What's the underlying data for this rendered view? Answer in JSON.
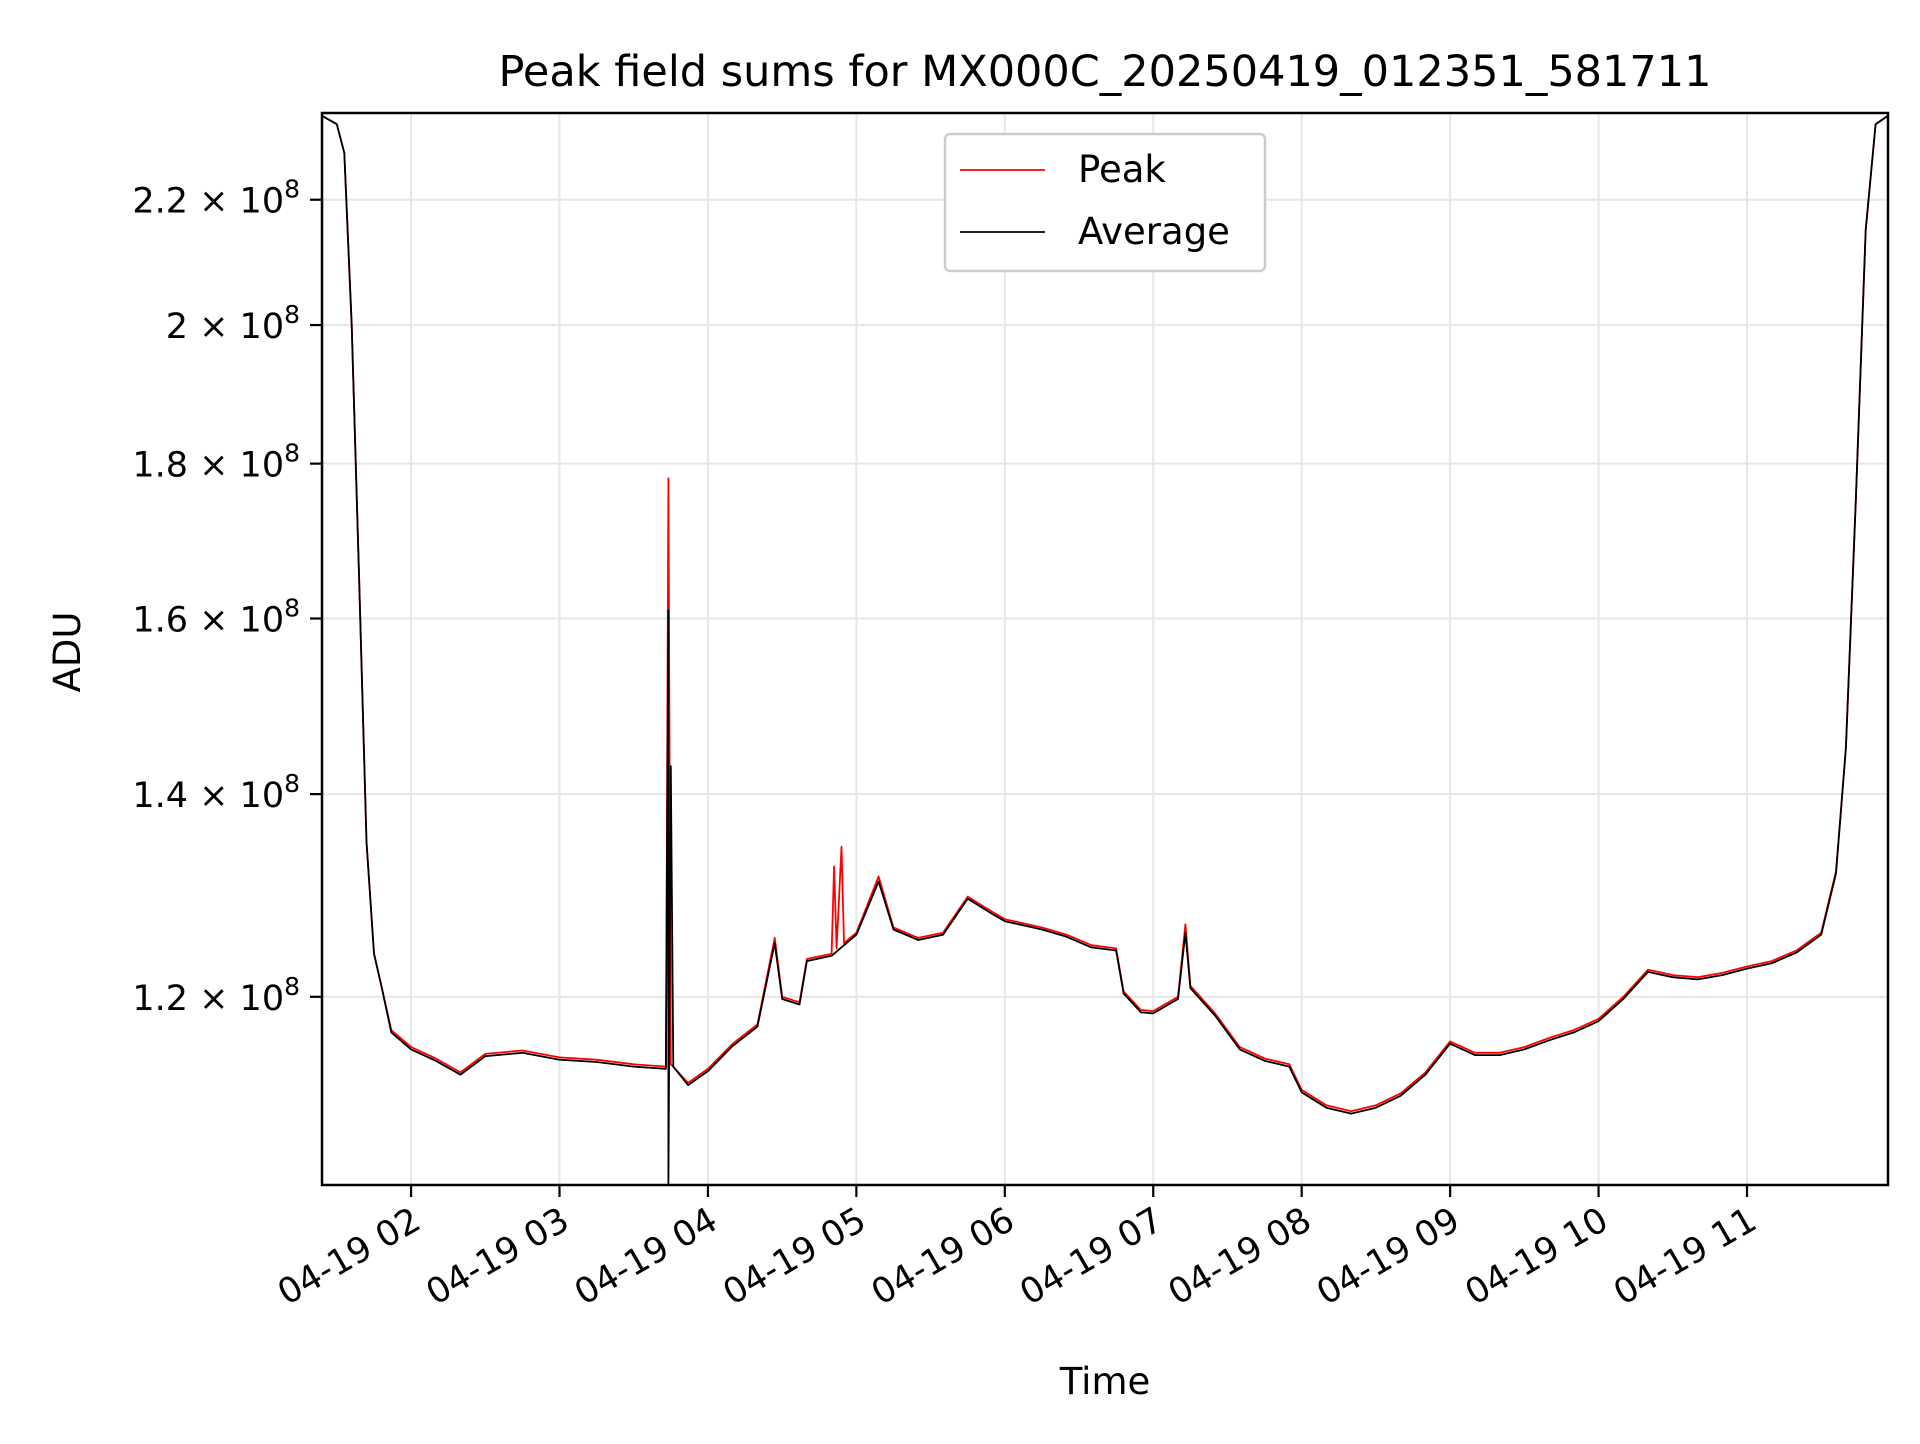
{
  "chart_data": {
    "type": "line",
    "title": "Peak field sums for MX000C_20250419_012351_581711",
    "xlabel": "Time",
    "ylabel": "ADU",
    "yscale": "log",
    "grid": true,
    "legend_position": "top-center",
    "xlim": [
      "2025-04-19 01:24",
      "2025-04-19 11:57"
    ],
    "ylim": [
      104000000,
      235000000
    ],
    "x_ticks": [
      {
        "value": "2025-04-19 02:00",
        "label": "04-19 02"
      },
      {
        "value": "2025-04-19 03:00",
        "label": "04-19 03"
      },
      {
        "value": "2025-04-19 04:00",
        "label": "04-19 04"
      },
      {
        "value": "2025-04-19 05:00",
        "label": "04-19 05"
      },
      {
        "value": "2025-04-19 06:00",
        "label": "04-19 06"
      },
      {
        "value": "2025-04-19 07:00",
        "label": "04-19 07"
      },
      {
        "value": "2025-04-19 08:00",
        "label": "04-19 08"
      },
      {
        "value": "2025-04-19 09:00",
        "label": "04-19 09"
      },
      {
        "value": "2025-04-19 10:00",
        "label": "04-19 10"
      },
      {
        "value": "2025-04-19 11:00",
        "label": "04-19 11"
      }
    ],
    "y_ticks": [
      {
        "value": 120000000,
        "mantissa": "1.2",
        "exp": "8"
      },
      {
        "value": 140000000,
        "mantissa": "1.4",
        "exp": "8"
      },
      {
        "value": 160000000,
        "mantissa": "1.6",
        "exp": "8"
      },
      {
        "value": 180000000,
        "mantissa": "1.8",
        "exp": "8"
      },
      {
        "value": 200000000,
        "mantissa": "2",
        "exp": "8"
      },
      {
        "value": 220000000,
        "mantissa": "2.2",
        "exp": "8"
      }
    ],
    "series": [
      {
        "name": "Peak",
        "color": "#ff0000",
        "points": [
          [
            "2025-04-19 01:24",
            234500000
          ],
          [
            "2025-04-19 01:30",
            233000000
          ],
          [
            "2025-04-19 01:33",
            228000000
          ],
          [
            "2025-04-19 01:36",
            200000000
          ],
          [
            "2025-04-19 01:39",
            165000000
          ],
          [
            "2025-04-19 01:42",
            135000000
          ],
          [
            "2025-04-19 01:45",
            124000000
          ],
          [
            "2025-04-19 01:48",
            121000000
          ],
          [
            "2025-04-19 01:52",
            117000000
          ],
          [
            "2025-04-19 02:00",
            115500000
          ],
          [
            "2025-04-19 02:10",
            114500000
          ],
          [
            "2025-04-19 02:20",
            113300000
          ],
          [
            "2025-04-19 02:30",
            114900000
          ],
          [
            "2025-04-19 02:45",
            115200000
          ],
          [
            "2025-04-19 03:00",
            114600000
          ],
          [
            "2025-04-19 03:15",
            114400000
          ],
          [
            "2025-04-19 03:30",
            114000000
          ],
          [
            "2025-04-19 03:43",
            113800000
          ],
          [
            "2025-04-19 03:44",
            178000000
          ],
          [
            "2025-04-19 03:45",
            114000000
          ],
          [
            "2025-04-19 03:52",
            112400000
          ],
          [
            "2025-04-19 04:00",
            113600000
          ],
          [
            "2025-04-19 04:10",
            115800000
          ],
          [
            "2025-04-19 04:20",
            117500000
          ],
          [
            "2025-04-19 04:27",
            125500000
          ],
          [
            "2025-04-19 04:30",
            120000000
          ],
          [
            "2025-04-19 04:37",
            119500000
          ],
          [
            "2025-04-19 04:40",
            123500000
          ],
          [
            "2025-04-19 04:50",
            124000000
          ],
          [
            "2025-04-19 04:51",
            132500000
          ],
          [
            "2025-04-19 04:52",
            124500000
          ],
          [
            "2025-04-19 04:54",
            134500000
          ],
          [
            "2025-04-19 04:55",
            125000000
          ],
          [
            "2025-04-19 05:00",
            126000000
          ],
          [
            "2025-04-19 05:09",
            131500000
          ],
          [
            "2025-04-19 05:15",
            126500000
          ],
          [
            "2025-04-19 05:25",
            125500000
          ],
          [
            "2025-04-19 05:35",
            126000000
          ],
          [
            "2025-04-19 05:45",
            129500000
          ],
          [
            "2025-04-19 05:55",
            128000000
          ],
          [
            "2025-04-19 06:00",
            127300000
          ],
          [
            "2025-04-19 06:15",
            126500000
          ],
          [
            "2025-04-19 06:25",
            125800000
          ],
          [
            "2025-04-19 06:35",
            124800000
          ],
          [
            "2025-04-19 06:45",
            124500000
          ],
          [
            "2025-04-19 06:48",
            120500000
          ],
          [
            "2025-04-19 06:55",
            118800000
          ],
          [
            "2025-04-19 07:00",
            118700000
          ],
          [
            "2025-04-19 07:10",
            120000000
          ],
          [
            "2025-04-19 07:13",
            126800000
          ],
          [
            "2025-04-19 07:15",
            121000000
          ],
          [
            "2025-04-19 07:25",
            118500000
          ],
          [
            "2025-04-19 07:35",
            115500000
          ],
          [
            "2025-04-19 07:45",
            114500000
          ],
          [
            "2025-04-19 07:55",
            114000000
          ],
          [
            "2025-04-19 08:00",
            111800000
          ],
          [
            "2025-04-19 08:10",
            110500000
          ],
          [
            "2025-04-19 08:20",
            110000000
          ],
          [
            "2025-04-19 08:30",
            110500000
          ],
          [
            "2025-04-19 08:40",
            111500000
          ],
          [
            "2025-04-19 08:50",
            113300000
          ],
          [
            "2025-04-19 09:00",
            116000000
          ],
          [
            "2025-04-19 09:10",
            115000000
          ],
          [
            "2025-04-19 09:20",
            115000000
          ],
          [
            "2025-04-19 09:30",
            115500000
          ],
          [
            "2025-04-19 09:40",
            116300000
          ],
          [
            "2025-04-19 09:50",
            117000000
          ],
          [
            "2025-04-19 10:00",
            118000000
          ],
          [
            "2025-04-19 10:10",
            120000000
          ],
          [
            "2025-04-19 10:20",
            122500000
          ],
          [
            "2025-04-19 10:30",
            122000000
          ],
          [
            "2025-04-19 10:40",
            121800000
          ],
          [
            "2025-04-19 10:50",
            122200000
          ],
          [
            "2025-04-19 11:00",
            122800000
          ],
          [
            "2025-04-19 11:10",
            123300000
          ],
          [
            "2025-04-19 11:20",
            124300000
          ],
          [
            "2025-04-19 11:30",
            126000000
          ],
          [
            "2025-04-19 11:36",
            132000000
          ],
          [
            "2025-04-19 11:40",
            145000000
          ],
          [
            "2025-04-19 11:44",
            175000000
          ],
          [
            "2025-04-19 11:48",
            215000000
          ],
          [
            "2025-04-19 11:52",
            233000000
          ],
          [
            "2025-04-19 11:57",
            234500000
          ]
        ]
      },
      {
        "name": "Average",
        "color": "#000000",
        "points": [
          [
            "2025-04-19 01:24",
            234500000
          ],
          [
            "2025-04-19 01:30",
            233000000
          ],
          [
            "2025-04-19 01:33",
            228000000
          ],
          [
            "2025-04-19 01:36",
            200000000
          ],
          [
            "2025-04-19 01:39",
            165000000
          ],
          [
            "2025-04-19 01:42",
            135000000
          ],
          [
            "2025-04-19 01:45",
            124000000
          ],
          [
            "2025-04-19 01:48",
            121000000
          ],
          [
            "2025-04-19 01:52",
            116800000
          ],
          [
            "2025-04-19 02:00",
            115300000
          ],
          [
            "2025-04-19 02:10",
            114300000
          ],
          [
            "2025-04-19 02:20",
            113100000
          ],
          [
            "2025-04-19 02:30",
            114700000
          ],
          [
            "2025-04-19 02:45",
            115000000
          ],
          [
            "2025-04-19 03:00",
            114400000
          ],
          [
            "2025-04-19 03:15",
            114200000
          ],
          [
            "2025-04-19 03:30",
            113800000
          ],
          [
            "2025-04-19 03:43",
            113600000
          ],
          [
            "2025-04-19 03:44",
            161000000
          ],
          [
            "2025-04-19 03:44",
            104000000
          ],
          [
            "2025-04-19 03:45",
            143000000
          ],
          [
            "2025-04-19 03:46",
            113800000
          ],
          [
            "2025-04-19 03:52",
            112200000
          ],
          [
            "2025-04-19 04:00",
            113400000
          ],
          [
            "2025-04-19 04:10",
            115600000
          ],
          [
            "2025-04-19 04:20",
            117300000
          ],
          [
            "2025-04-19 04:27",
            125000000
          ],
          [
            "2025-04-19 04:30",
            119800000
          ],
          [
            "2025-04-19 04:37",
            119300000
          ],
          [
            "2025-04-19 04:40",
            123300000
          ],
          [
            "2025-04-19 04:50",
            123800000
          ],
          [
            "2025-04-19 04:55",
            124800000
          ],
          [
            "2025-04-19 05:00",
            125800000
          ],
          [
            "2025-04-19 05:09",
            131000000
          ],
          [
            "2025-04-19 05:15",
            126300000
          ],
          [
            "2025-04-19 05:25",
            125300000
          ],
          [
            "2025-04-19 05:35",
            125800000
          ],
          [
            "2025-04-19 05:45",
            129300000
          ],
          [
            "2025-04-19 05:55",
            127800000
          ],
          [
            "2025-04-19 06:00",
            127100000
          ],
          [
            "2025-04-19 06:15",
            126300000
          ],
          [
            "2025-04-19 06:25",
            125600000
          ],
          [
            "2025-04-19 06:35",
            124600000
          ],
          [
            "2025-04-19 06:45",
            124300000
          ],
          [
            "2025-04-19 06:48",
            120300000
          ],
          [
            "2025-04-19 06:55",
            118600000
          ],
          [
            "2025-04-19 07:00",
            118500000
          ],
          [
            "2025-04-19 07:10",
            119800000
          ],
          [
            "2025-04-19 07:13",
            126000000
          ],
          [
            "2025-04-19 07:15",
            120800000
          ],
          [
            "2025-04-19 07:25",
            118300000
          ],
          [
            "2025-04-19 07:35",
            115300000
          ],
          [
            "2025-04-19 07:45",
            114300000
          ],
          [
            "2025-04-19 07:55",
            113800000
          ],
          [
            "2025-04-19 08:00",
            111600000
          ],
          [
            "2025-04-19 08:10",
            110300000
          ],
          [
            "2025-04-19 08:20",
            109800000
          ],
          [
            "2025-04-19 08:30",
            110300000
          ],
          [
            "2025-04-19 08:40",
            111300000
          ],
          [
            "2025-04-19 08:50",
            113100000
          ],
          [
            "2025-04-19 09:00",
            115800000
          ],
          [
            "2025-04-19 09:10",
            114800000
          ],
          [
            "2025-04-19 09:20",
            114800000
          ],
          [
            "2025-04-19 09:30",
            115300000
          ],
          [
            "2025-04-19 09:40",
            116100000
          ],
          [
            "2025-04-19 09:50",
            116800000
          ],
          [
            "2025-04-19 10:00",
            117800000
          ],
          [
            "2025-04-19 10:10",
            119800000
          ],
          [
            "2025-04-19 10:20",
            122300000
          ],
          [
            "2025-04-19 10:30",
            121800000
          ],
          [
            "2025-04-19 10:40",
            121600000
          ],
          [
            "2025-04-19 10:50",
            122000000
          ],
          [
            "2025-04-19 11:00",
            122600000
          ],
          [
            "2025-04-19 11:10",
            123100000
          ],
          [
            "2025-04-19 11:20",
            124100000
          ],
          [
            "2025-04-19 11:30",
            125800000
          ],
          [
            "2025-04-19 11:36",
            131800000
          ],
          [
            "2025-04-19 11:40",
            145000000
          ],
          [
            "2025-04-19 11:44",
            175000000
          ],
          [
            "2025-04-19 11:48",
            215000000
          ],
          [
            "2025-04-19 11:52",
            233000000
          ],
          [
            "2025-04-19 11:57",
            234500000
          ]
        ]
      }
    ]
  }
}
